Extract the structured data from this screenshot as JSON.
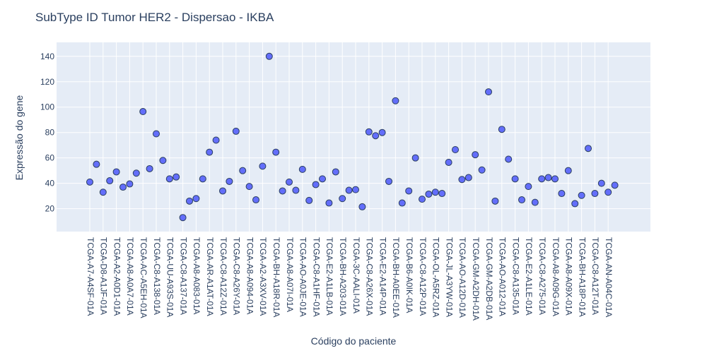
{
  "chart_data": {
    "type": "scatter",
    "title": "SubType ID Tumor HER2 - Dispersao - IKBA",
    "xlabel": "Código do paciente",
    "ylabel": "Expressão do gene",
    "ylim": [
      2,
      151
    ],
    "yticks": [
      20,
      40,
      60,
      80,
      100,
      120,
      140
    ],
    "grid": true,
    "colors": {
      "plot_bg": "#e5ecf6",
      "grid": "#ffffff",
      "marker": "#636efa",
      "marker_line": "#2a3f5f",
      "text": "#2a3f5f"
    },
    "x_tick_labels": [
      "TCGA-A7-A4SF-01A",
      "TCGA-D8-A1JF-01A",
      "TCGA-A2-A0D1-01A",
      "TCGA-A8-A0A7-01A",
      "TCGA-AC-A5EH-01A",
      "TCGA-C8-A138-01A",
      "TCGA-UU-A93S-01A",
      "TCGA-C8-A137-01A",
      "TCGA-A8-A083-01A",
      "TCGA-AR-A1AT-01A",
      "TCGA-C8-A12Z-01A",
      "TCGA-C8-A26Y-01A",
      "TCGA-A8-A094-01A",
      "TCGA-A2-A3XV-01A",
      "TCGA-BH-A18R-01A",
      "TCGA-A8-A07I-01A",
      "TCGA-AO-A0JE-01A",
      "TCGA-C8-A1HF-01A",
      "TCGA-E2-A1LB-01A",
      "TCGA-BH-A203-01A",
      "TCGA-3C-AALI-01A",
      "TCGA-C8-A26X-01A",
      "TCGA-E2-A14P-01A",
      "TCGA-BH-A0EE-01A",
      "TCGA-B6-A0IK-01A",
      "TCGA-C8-A12P-01A",
      "TCGA-OL-A5RZ-01A",
      "TCGA-JL-A3YW-01A",
      "TCGA-AO-A12D-01A",
      "TCGA-GM-A2DH-01A",
      "TCGA-GM-A2DB-01A",
      "TCGA-AO-A012-01A",
      "TCGA-C8-A135-01A",
      "TCGA-E2-A1LE-01A",
      "TCGA-C8-A275-01A",
      "TCGA-A8-A09G-01A",
      "TCGA-A8-A09X-01A",
      "TCGA-BH-A18P-01A",
      "TCGA-C8-A12T-01A",
      "TCGA-AN-A04C-01A"
    ],
    "points": [
      {
        "x": 0,
        "y": 41
      },
      {
        "x": 0.5,
        "y": 55
      },
      {
        "x": 1,
        "y": 33
      },
      {
        "x": 1.5,
        "y": 42
      },
      {
        "x": 2,
        "y": 49
      },
      {
        "x": 2.5,
        "y": 37
      },
      {
        "x": 3,
        "y": 39.5
      },
      {
        "x": 3.5,
        "y": 48
      },
      {
        "x": 4,
        "y": 96.5
      },
      {
        "x": 4.5,
        "y": 51.5
      },
      {
        "x": 5,
        "y": 79
      },
      {
        "x": 5.5,
        "y": 58
      },
      {
        "x": 6,
        "y": 43.5
      },
      {
        "x": 6.5,
        "y": 45
      },
      {
        "x": 7,
        "y": 13
      },
      {
        "x": 7.5,
        "y": 26
      },
      {
        "x": 8,
        "y": 28
      },
      {
        "x": 8.5,
        "y": 43.5
      },
      {
        "x": 9,
        "y": 64.5
      },
      {
        "x": 9.5,
        "y": 74
      },
      {
        "x": 10,
        "y": 34
      },
      {
        "x": 10.5,
        "y": 41.5
      },
      {
        "x": 11,
        "y": 81
      },
      {
        "x": 11.5,
        "y": 50
      },
      {
        "x": 12,
        "y": 37.5
      },
      {
        "x": 12.5,
        "y": 27
      },
      {
        "x": 13,
        "y": 53.5
      },
      {
        "x": 13.5,
        "y": 140
      },
      {
        "x": 14,
        "y": 64.5
      },
      {
        "x": 14.5,
        "y": 34
      },
      {
        "x": 15,
        "y": 41
      },
      {
        "x": 15.5,
        "y": 34.5
      },
      {
        "x": 16,
        "y": 51
      },
      {
        "x": 16.5,
        "y": 26.5
      },
      {
        "x": 17,
        "y": 39
      },
      {
        "x": 17.5,
        "y": 43.5
      },
      {
        "x": 18,
        "y": 24.5
      },
      {
        "x": 18.5,
        "y": 49
      },
      {
        "x": 19,
        "y": 28
      },
      {
        "x": 19.5,
        "y": 34.5
      },
      {
        "x": 20,
        "y": 35
      },
      {
        "x": 20.5,
        "y": 21.5
      },
      {
        "x": 21,
        "y": 80.5
      },
      {
        "x": 21.5,
        "y": 77.5
      },
      {
        "x": 22,
        "y": 80
      },
      {
        "x": 22.5,
        "y": 41.5
      },
      {
        "x": 23,
        "y": 105
      },
      {
        "x": 23.5,
        "y": 24.5
      },
      {
        "x": 24,
        "y": 34
      },
      {
        "x": 24.5,
        "y": 60
      },
      {
        "x": 25,
        "y": 27.5
      },
      {
        "x": 25.5,
        "y": 31.5
      },
      {
        "x": 26,
        "y": 33
      },
      {
        "x": 26.5,
        "y": 32
      },
      {
        "x": 27,
        "y": 56.5
      },
      {
        "x": 27.5,
        "y": 66.5
      },
      {
        "x": 28,
        "y": 43
      },
      {
        "x": 28.5,
        "y": 44.5
      },
      {
        "x": 29,
        "y": 62.5
      },
      {
        "x": 29.5,
        "y": 50.5
      },
      {
        "x": 30,
        "y": 112
      },
      {
        "x": 30.5,
        "y": 26
      },
      {
        "x": 31,
        "y": 82.5
      },
      {
        "x": 31.5,
        "y": 59
      },
      {
        "x": 32,
        "y": 43.5
      },
      {
        "x": 32.5,
        "y": 27
      },
      {
        "x": 33,
        "y": 37.5
      },
      {
        "x": 33.5,
        "y": 25
      },
      {
        "x": 34,
        "y": 43.5
      },
      {
        "x": 34.5,
        "y": 44.5
      },
      {
        "x": 35,
        "y": 43.5
      },
      {
        "x": 35.5,
        "y": 32
      },
      {
        "x": 36,
        "y": 50
      },
      {
        "x": 36.5,
        "y": 24
      },
      {
        "x": 37,
        "y": 30.5
      },
      {
        "x": 37.5,
        "y": 67.5
      },
      {
        "x": 38,
        "y": 32
      },
      {
        "x": 38.5,
        "y": 40
      },
      {
        "x": 39,
        "y": 33
      },
      {
        "x": 39.5,
        "y": 38.5
      }
    ]
  }
}
